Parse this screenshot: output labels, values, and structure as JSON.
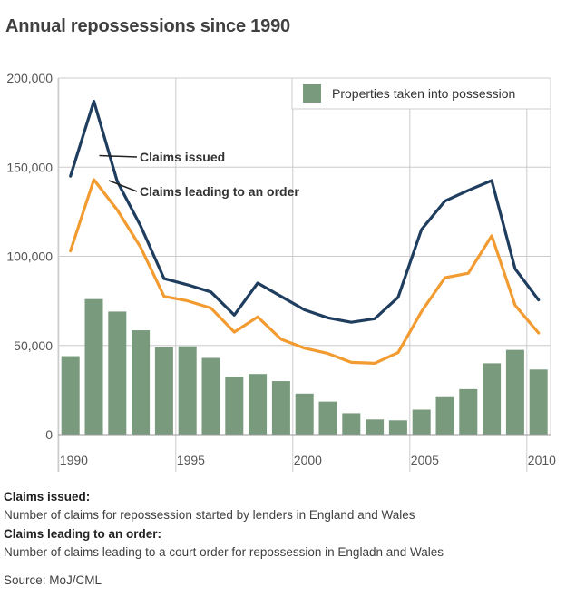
{
  "colors": {
    "claims_issued": "#1f3d5e",
    "claims_order": "#f29b30",
    "possessions": "#7a9a7e",
    "grid": "#cccccc",
    "tick_text": "#555555"
  },
  "chart_data": {
    "type": "bar",
    "title": "Annual repossessions since 1990",
    "x": [
      1990,
      1991,
      1992,
      1993,
      1994,
      1995,
      1996,
      1997,
      1998,
      1999,
      2000,
      2001,
      2002,
      2003,
      2004,
      2005,
      2006,
      2007,
      2008,
      2009,
      2010
    ],
    "xticks": [
      "1990",
      "1995",
      "2000",
      "2005",
      "2010"
    ],
    "xtick_years": [
      1990,
      1995,
      2000,
      2005,
      2010
    ],
    "yticks": [
      "0",
      "50,000",
      "100,000",
      "150,000",
      "200,000"
    ],
    "ytick_values": [
      0,
      50000,
      100000,
      150000,
      200000
    ],
    "ylim": [
      0,
      200000
    ],
    "grid": true,
    "legend_position": "top-right",
    "series": [
      {
        "name": "Properties taken into possession",
        "kind": "bar",
        "values": [
          44000,
          76000,
          69000,
          58500,
          49000,
          49500,
          43000,
          32500,
          34000,
          30000,
          23000,
          18500,
          12000,
          8500,
          8000,
          14000,
          21000,
          25500,
          40000,
          47500,
          36500
        ]
      },
      {
        "name": "Claims issued",
        "kind": "line",
        "values": [
          145000,
          187000,
          142000,
          117000,
          87500,
          84000,
          80000,
          67000,
          85000,
          77500,
          70000,
          65500,
          63000,
          65000,
          77000,
          115000,
          131000,
          137000,
          142500,
          93000,
          75500
        ]
      },
      {
        "name": "Claims leading to an order",
        "kind": "line",
        "values": [
          103000,
          143000,
          126000,
          105000,
          77500,
          75000,
          71000,
          57500,
          66000,
          53500,
          48500,
          45500,
          40500,
          40000,
          46000,
          69000,
          88000,
          90500,
          111500,
          72500,
          57000
        ]
      }
    ],
    "annotations": [
      "Claims issued",
      "Claims leading to an order"
    ]
  },
  "notes": {
    "claims_issued_heading": "Claims issued:",
    "claims_issued_text": "Number of claims for repossession started by lenders in England and Wales",
    "claims_order_heading": "Claims leading to an order:",
    "claims_order_text": "Number of claims leading to a court order for repossession in Engladn and Wales",
    "source": "Source: MoJ/CML"
  }
}
